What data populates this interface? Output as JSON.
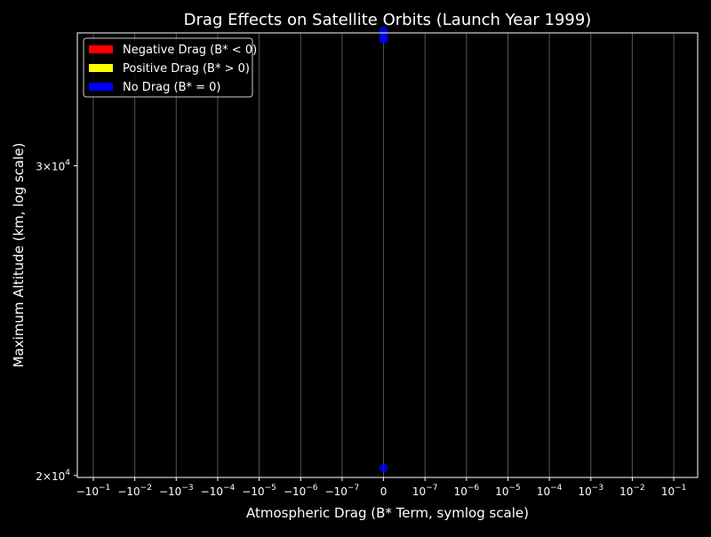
{
  "chart_data": {
    "type": "scatter",
    "title": "Drag Effects on Satellite Orbits (Launch Year 1999)",
    "xlabel": "Atmospheric Drag (B* Term, symlog scale)",
    "ylabel": "Maximum Altitude (km, log scale)",
    "x_scale": "symlog",
    "y_scale": "log",
    "ylim": [
      19950,
      35700
    ],
    "grid": {
      "x": true,
      "y": false
    },
    "legend_position": "top-left",
    "x_ticks": [
      {
        "base": "−10",
        "exp": "−1"
      },
      {
        "base": "−10",
        "exp": "−2"
      },
      {
        "base": "−10",
        "exp": "−3"
      },
      {
        "base": "−10",
        "exp": "−4"
      },
      {
        "base": "−10",
        "exp": "−5"
      },
      {
        "base": "−10",
        "exp": "−6"
      },
      {
        "base": "−10",
        "exp": "−7"
      },
      {
        "base": "0",
        "exp": ""
      },
      {
        "base": "10",
        "exp": "−7"
      },
      {
        "base": "10",
        "exp": "−6"
      },
      {
        "base": "10",
        "exp": "−5"
      },
      {
        "base": "10",
        "exp": "−4"
      },
      {
        "base": "10",
        "exp": "−3"
      },
      {
        "base": "10",
        "exp": "−2"
      },
      {
        "base": "10",
        "exp": "−1"
      }
    ],
    "y_ticks": [
      {
        "value": 30000,
        "label": "3×10",
        "exp": "4"
      },
      {
        "value": 20000,
        "label": "2×10",
        "exp": "4"
      }
    ],
    "series": [
      {
        "name": "Negative Drag (B* < 0)",
        "color": "#ff0000",
        "points": []
      },
      {
        "name": "Positive Drag (B* > 0)",
        "color": "#ffff00",
        "points": []
      },
      {
        "name": "No Drag (B* = 0)",
        "color": "#0000ff",
        "points": [
          {
            "x": 0,
            "y": 35786
          },
          {
            "x": 0,
            "y": 35500
          },
          {
            "x": 0,
            "y": 35400
          },
          {
            "x": 0,
            "y": 20200
          }
        ]
      }
    ]
  }
}
